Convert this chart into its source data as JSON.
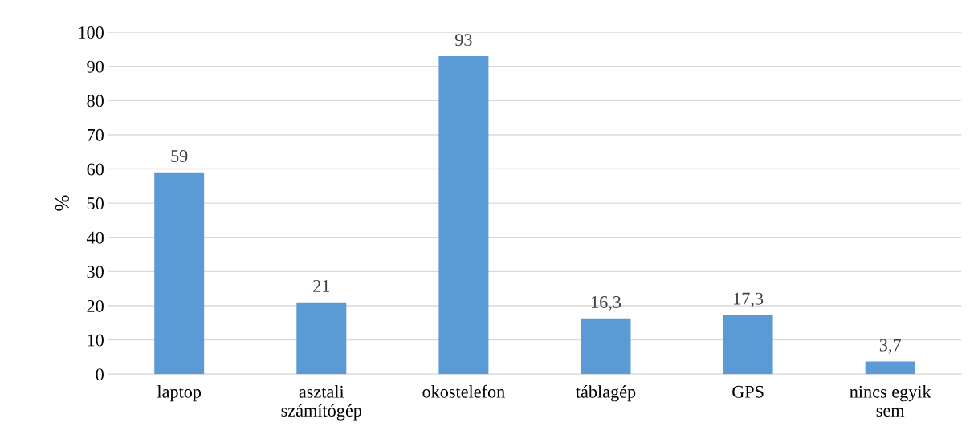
{
  "chart_data": {
    "type": "bar",
    "ylabel": "%",
    "categories": [
      "laptop",
      "asztali\nszámítógép",
      "okostelefon",
      "táblagép",
      "GPS",
      "nincs egyik\nsem"
    ],
    "values": [
      59,
      21,
      93,
      16.3,
      17.3,
      3.7
    ],
    "value_labels": [
      "59",
      "21",
      "93",
      "16,3",
      "17,3",
      "3,7"
    ],
    "color": "#5b9bd5",
    "ylim": [
      0,
      100
    ],
    "yticks": [
      0,
      10,
      20,
      30,
      40,
      50,
      60,
      70,
      80,
      90,
      100
    ],
    "grid": "y"
  }
}
